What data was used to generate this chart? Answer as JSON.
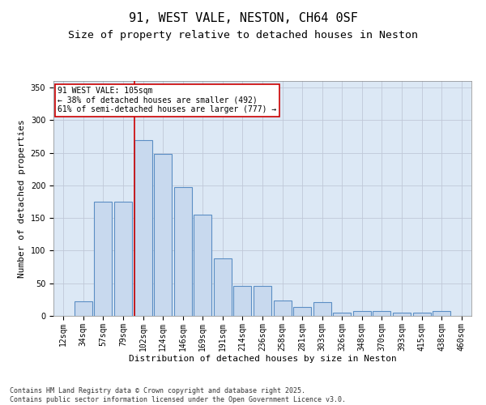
{
  "title1": "91, WEST VALE, NESTON, CH64 0SF",
  "title2": "Size of property relative to detached houses in Neston",
  "xlabel": "Distribution of detached houses by size in Neston",
  "ylabel": "Number of detached properties",
  "categories": [
    "12sqm",
    "34sqm",
    "57sqm",
    "79sqm",
    "102sqm",
    "124sqm",
    "146sqm",
    "169sqm",
    "191sqm",
    "214sqm",
    "236sqm",
    "258sqm",
    "281sqm",
    "303sqm",
    "326sqm",
    "348sqm",
    "370sqm",
    "393sqm",
    "415sqm",
    "438sqm",
    "460sqm"
  ],
  "values": [
    0,
    22,
    175,
    175,
    270,
    248,
    198,
    155,
    88,
    46,
    46,
    24,
    14,
    21,
    5,
    8,
    8,
    5,
    5,
    7,
    0
  ],
  "bar_color": "#c8d9ee",
  "bar_edge_color": "#5b8ec4",
  "bar_edge_width": 0.8,
  "vline_color": "#cc0000",
  "vline_linewidth": 1.2,
  "annotation_text": "91 WEST VALE: 105sqm\n← 38% of detached houses are smaller (492)\n61% of semi-detached houses are larger (777) →",
  "annotation_box_color": "#ffffff",
  "annotation_box_edge": "#cc0000",
  "ylim": [
    0,
    360
  ],
  "yticks": [
    0,
    50,
    100,
    150,
    200,
    250,
    300,
    350
  ],
  "grid_color": "#c0c8d8",
  "background_color": "#dce8f5",
  "footer1": "Contains HM Land Registry data © Crown copyright and database right 2025.",
  "footer2": "Contains public sector information licensed under the Open Government Licence v3.0.",
  "title_fontsize": 11,
  "subtitle_fontsize": 9.5,
  "axis_label_fontsize": 8,
  "tick_fontsize": 7,
  "annotation_fontsize": 7,
  "footer_fontsize": 6
}
